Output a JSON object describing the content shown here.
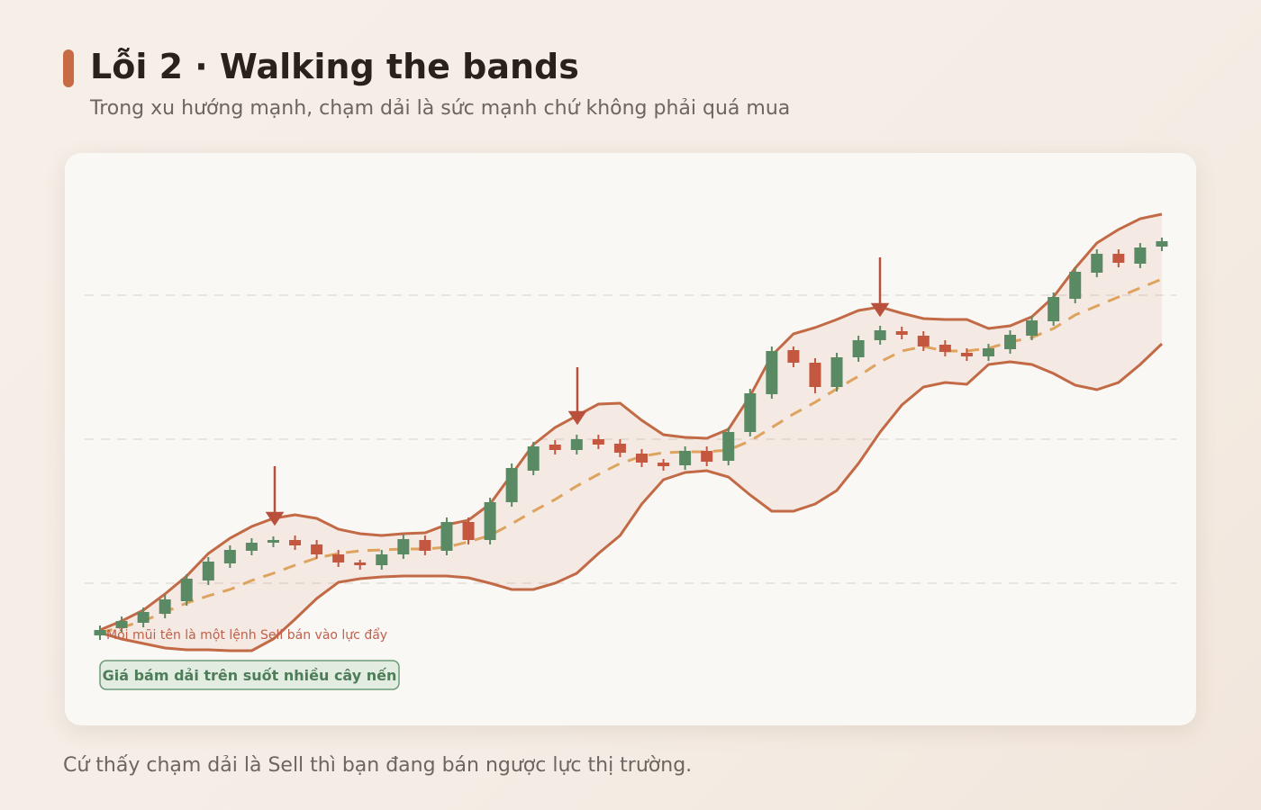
{
  "title": "Lỗi 2 · Walking the bands",
  "subtitle": "Trong xu hướng mạnh, chạm dải là sức mạnh chứ không phải quá mua",
  "footer": "Cứ thấy chạm dải là Sell thì bạn đang bán ngược lực thị trường.",
  "chart_data": {
    "type": "candlestick",
    "annotation": "Mỗi mũi tên là một lệnh Sell bán vào lực đẩy",
    "badge": "Giá bám dải trên suốt nhiều cây nến",
    "up_color": "#5a8a63",
    "down_color": "#c4573f",
    "band_color": "#c26a45",
    "middle_color": "#dea35e",
    "open": [
      94,
      102,
      108,
      118,
      132,
      155,
      174,
      188,
      197,
      200,
      195,
      184,
      175,
      172,
      184,
      200,
      188,
      220,
      200,
      242,
      277,
      306,
      300,
      312,
      307,
      296,
      286,
      283,
      299,
      288,
      320,
      362,
      411,
      397,
      370,
      403,
      422,
      432,
      427,
      417,
      408,
      404,
      412,
      427,
      443,
      468,
      497,
      518,
      507,
      526
    ],
    "close": [
      100,
      110,
      120,
      134,
      157,
      176,
      189,
      197,
      200,
      194,
      184,
      175,
      172,
      184,
      201,
      188,
      220,
      200,
      242,
      280,
      304,
      300,
      312,
      306,
      297,
      286,
      282,
      299,
      287,
      320,
      363,
      410,
      397,
      370,
      403,
      422,
      433,
      428,
      415,
      409,
      404,
      413,
      428,
      444,
      470,
      498,
      518,
      508,
      525,
      532
    ],
    "high": [
      105,
      115,
      125,
      139,
      162,
      181,
      194,
      202,
      204,
      205,
      200,
      189,
      178,
      189,
      206,
      205,
      225,
      225,
      247,
      285,
      309,
      311,
      317,
      317,
      312,
      301,
      290,
      304,
      304,
      325,
      368,
      415,
      415,
      402,
      408,
      427,
      438,
      437,
      432,
      422,
      413,
      418,
      433,
      449,
      475,
      503,
      523,
      523,
      530,
      536
    ],
    "low": [
      89,
      97,
      103,
      113,
      127,
      150,
      169,
      183,
      192,
      189,
      179,
      170,
      167,
      167,
      179,
      183,
      183,
      195,
      195,
      237,
      272,
      295,
      295,
      301,
      292,
      281,
      277,
      278,
      282,
      283,
      315,
      357,
      392,
      363,
      365,
      398,
      417,
      423,
      410,
      404,
      399,
      399,
      407,
      422,
      438,
      463,
      492,
      503,
      502,
      521
    ],
    "upper": [
      100,
      110,
      122,
      140,
      160,
      185,
      202,
      215,
      224,
      228,
      224,
      212,
      207,
      205,
      207,
      208,
      217,
      222,
      240,
      273,
      306,
      325,
      338,
      351,
      352,
      333,
      317,
      314,
      313,
      323,
      360,
      405,
      429,
      436,
      445,
      455,
      459,
      452,
      446,
      445,
      445,
      435,
      438,
      448,
      470,
      502,
      530,
      545,
      557,
      562
    ],
    "middle": [
      97,
      103,
      110,
      120,
      130,
      138,
      145,
      155,
      163,
      172,
      180,
      185,
      188,
      189,
      190,
      190,
      192,
      198,
      205,
      218,
      232,
      245,
      260,
      273,
      285,
      293,
      297,
      298,
      298,
      300,
      310,
      325,
      340,
      353,
      368,
      382,
      398,
      410,
      415,
      410,
      410,
      413,
      420,
      425,
      435,
      450,
      460,
      470,
      480,
      490
    ],
    "lower": [
      97,
      90,
      85,
      80,
      78,
      78,
      77,
      77,
      90,
      112,
      135,
      153,
      157,
      159,
      160,
      160,
      160,
      158,
      152,
      145,
      145,
      152,
      163,
      185,
      205,
      240,
      267,
      275,
      277,
      270,
      250,
      232,
      232,
      240,
      255,
      285,
      320,
      350,
      370,
      375,
      373,
      395,
      398,
      395,
      385,
      372,
      367,
      375,
      395,
      418
    ]
  }
}
